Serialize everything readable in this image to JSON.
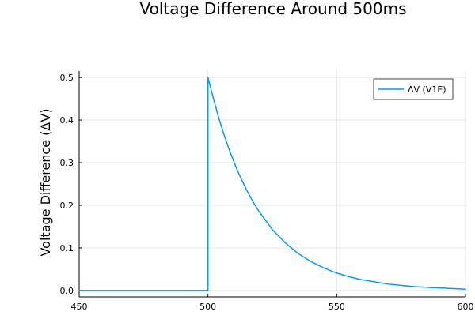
{
  "chart_data": {
    "type": "line",
    "title": "Voltage Difference Around 500ms",
    "xlabel": "",
    "ylabel": "Voltage Difference (ΔV)",
    "xlim": [
      450,
      600
    ],
    "ylim": [
      -0.015,
      0.515
    ],
    "xticks": [
      450,
      500,
      550,
      600
    ],
    "yticks": [
      0.0,
      0.1,
      0.2,
      0.3,
      0.4,
      0.5
    ],
    "xtick_labels": [
      "450",
      "500",
      "550",
      "600"
    ],
    "ytick_labels": [
      "0.0",
      "0.1",
      "0.2",
      "0.3",
      "0.4",
      "0.5"
    ],
    "grid": true,
    "legend_position": "top-right",
    "series": [
      {
        "name": "ΔV (V1E)",
        "color": "#009af9",
        "x": [
          450,
          500,
          500,
          502,
          504,
          506,
          508,
          510,
          512,
          515,
          518,
          520,
          525,
          530,
          535,
          540,
          545,
          550,
          555,
          560,
          570,
          580,
          590,
          600
        ],
        "y": [
          0.0,
          0.0,
          0.5,
          0.453,
          0.409,
          0.37,
          0.335,
          0.303,
          0.274,
          0.236,
          0.203,
          0.184,
          0.143,
          0.112,
          0.087,
          0.068,
          0.053,
          0.041,
          0.032,
          0.025,
          0.015,
          0.009,
          0.006,
          0.003
        ]
      }
    ]
  }
}
